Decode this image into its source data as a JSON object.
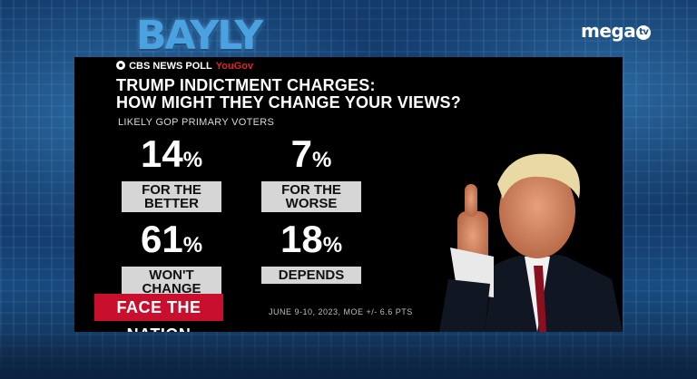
{
  "show_logo": "BAYLY",
  "network_logo": {
    "text": "mega",
    "badge": "tv"
  },
  "graphic": {
    "source": "CBS NEWS POLL",
    "partner": "YouGov",
    "title_line1": "TRUMP INDICTMENT CHARGES:",
    "title_line2": "HOW MIGHT THEY CHANGE YOUR VIEWS?",
    "subtitle": "LIKELY GOP PRIMARY VOTERS",
    "stats": [
      {
        "value": "14",
        "unit": "%",
        "label": "FOR THE\nBETTER"
      },
      {
        "value": "7",
        "unit": "%",
        "label": "FOR THE\nWORSE"
      },
      {
        "value": "61",
        "unit": "%",
        "label": "WON'T\nCHANGE"
      },
      {
        "value": "18",
        "unit": "%",
        "label": "DEPENDS"
      }
    ],
    "brand": "FACE THE NATION",
    "footnote": "JUNE 9-10, 2023, MOE +/- 6.6 PTS"
  },
  "colors": {
    "panel": "#000000",
    "label_bg": "#d6d6d6",
    "brand_red": "#c8102e",
    "logo_blue": "#4aa3e0"
  }
}
